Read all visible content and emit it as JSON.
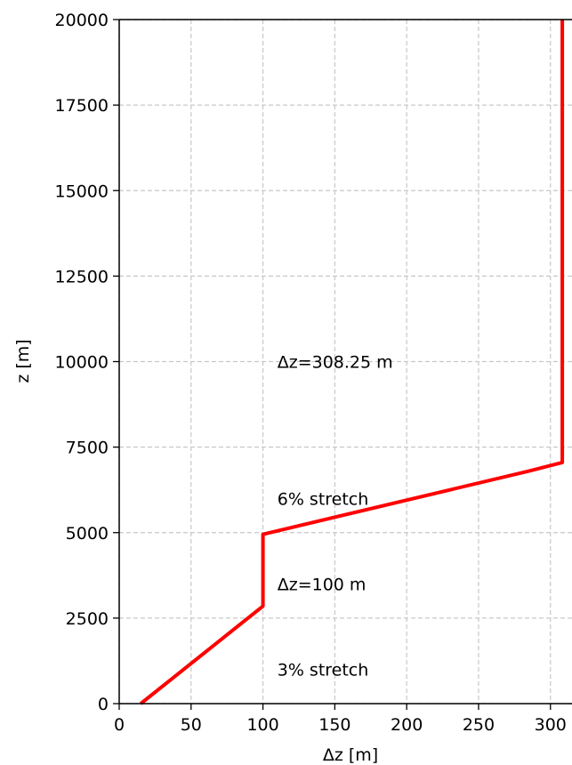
{
  "chart_data": {
    "type": "line",
    "title": "",
    "xlabel": "Δz [m]",
    "ylabel": "z [m]",
    "xlim": [
      0,
      315
    ],
    "ylim": [
      0,
      20000
    ],
    "x_ticks": [
      0,
      50,
      100,
      150,
      200,
      250,
      300
    ],
    "x_tick_labels": [
      "0",
      "50",
      "100",
      "150",
      "200",
      "250",
      "300"
    ],
    "y_ticks": [
      0,
      2500,
      5000,
      7500,
      10000,
      12500,
      15000,
      17500,
      20000
    ],
    "y_tick_labels": [
      "0",
      "2500",
      "5000",
      "7500",
      "10000",
      "12500",
      "15000",
      "17500",
      "20000"
    ],
    "grid": true,
    "series": [
      {
        "color": "#ff0000",
        "x": [
          15,
          100,
          100,
          285,
          308.25,
          308.25
        ],
        "y": [
          0,
          2850,
          4950,
          6800,
          7050,
          20000
        ]
      }
    ],
    "annotations": [
      {
        "text": "Δz=308.25 m",
        "x": 110,
        "y": 10000
      },
      {
        "text": "6% stretch",
        "x": 110,
        "y": 6000
      },
      {
        "text": "Δz=100 m",
        "x": 110,
        "y": 3500
      },
      {
        "text": "3% stretch",
        "x": 110,
        "y": 1000
      }
    ]
  }
}
